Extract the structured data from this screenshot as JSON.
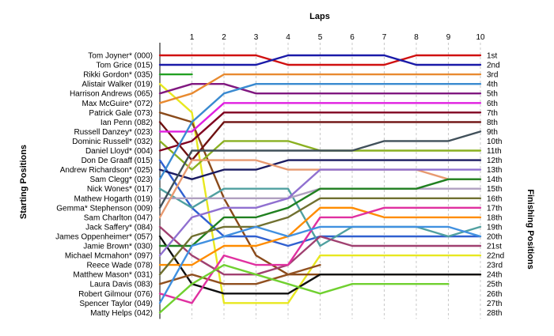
{
  "chart_data": {
    "type": "line",
    "title": "Laps",
    "ylabel_left": "Starting Positions",
    "ylabel_right": "Finishing Positions",
    "x": [
      1,
      2,
      3,
      4,
      5,
      6,
      7,
      8,
      9,
      10
    ],
    "x_ticks": [
      "1",
      "2",
      "3",
      "4",
      "5",
      "6",
      "7",
      "8",
      "9",
      "10"
    ],
    "positions": 28,
    "grid": "vertical dashed at each lap",
    "legend": "none",
    "finish_labels": [
      "1st",
      "2nd",
      "3rd",
      "4th",
      "5th",
      "6th",
      "7th",
      "8th",
      "9th",
      "10th",
      "11th",
      "12th",
      "13th",
      "14th",
      "15th",
      "16th",
      "17th",
      "18th",
      "19th",
      "20th",
      "21st",
      "22nd",
      "23rd",
      "24th",
      "25th",
      "26th",
      "27th",
      "28th"
    ],
    "series": [
      {
        "name": "Tom Joyner* (000)",
        "color": "#d01010",
        "start": 1,
        "laps": [
          1,
          1,
          1,
          2,
          2,
          2,
          2,
          1,
          1,
          1
        ]
      },
      {
        "name": "Tom Grice (015)",
        "color": "#1a1aa8",
        "start": 2,
        "laps": [
          2,
          2,
          2,
          1,
          1,
          1,
          1,
          2,
          2,
          2
        ]
      },
      {
        "name": "Rikki Gordon* (035)",
        "color": "#22a022",
        "start": 3,
        "laps": [
          3
        ]
      },
      {
        "name": "Alistair Walker (019)",
        "color": "#e8e820",
        "start": 4,
        "laps": [
          7,
          27,
          27,
          27,
          22,
          22,
          22,
          22,
          22,
          22
        ]
      },
      {
        "name": "Harrison Andrews (065)",
        "color": "#801880",
        "start": 5,
        "laps": [
          4,
          4,
          5,
          5,
          5,
          5,
          5,
          5,
          5,
          5
        ]
      },
      {
        "name": "Max McGuire* (072)",
        "color": "#e88a30",
        "start": 6,
        "laps": [
          5,
          3,
          3,
          3,
          3,
          3,
          3,
          3,
          3,
          3
        ]
      },
      {
        "name": "Patrick Gale (073)",
        "color": "#8a4a1a",
        "start": 7,
        "laps": [
          8,
          16,
          22,
          24,
          24,
          24,
          24,
          24,
          24,
          24
        ]
      },
      {
        "name": "Ian Penn (082)",
        "color": "#6e1010",
        "start": 8,
        "laps": [
          12,
          8,
          8,
          8,
          8,
          8,
          8,
          8,
          8,
          8
        ]
      },
      {
        "name": "Russell Danzey* (023)",
        "color": "#e020e0",
        "start": 9,
        "laps": [
          9,
          6,
          6,
          6,
          6,
          6,
          6,
          6,
          6,
          6
        ]
      },
      {
        "name": "Dominic Russell* (032)",
        "color": "#8ab020",
        "start": 10,
        "laps": [
          13,
          10,
          10,
          10,
          11,
          11,
          11,
          11,
          11,
          11
        ]
      },
      {
        "name": "Daniel Lloyd* (004)",
        "color": "#800020",
        "start": 11,
        "laps": [
          10,
          7,
          7,
          7,
          7,
          7,
          7,
          7,
          7,
          7
        ]
      },
      {
        "name": "Don De Graaff (015)",
        "color": "#3060d0",
        "start": 12,
        "laps": [
          17,
          20,
          20,
          21,
          20,
          20,
          20,
          20,
          20,
          20
        ]
      },
      {
        "name": "Andrew Richardson* (025)",
        "color": "#1a1a60",
        "start": 13,
        "laps": [
          14,
          13,
          13,
          12,
          12,
          12,
          12,
          12,
          12,
          12
        ]
      },
      {
        "name": "Sam Clegg* (023)",
        "color": "#3a8ad0",
        "start": 14,
        "laps": [
          8,
          5,
          4,
          4,
          4,
          4,
          4,
          4,
          4,
          4
        ]
      },
      {
        "name": "Nick Wones* (017)",
        "color": "#50a0a0",
        "start": 15,
        "laps": [
          17,
          15,
          15,
          15,
          21,
          19,
          19,
          19,
          20,
          19
        ]
      },
      {
        "name": "Mathew Hogarth (019)",
        "color": "#b0a0c0",
        "start": 16,
        "laps": [
          16,
          16,
          16,
          16,
          15,
          15,
          15,
          15,
          15,
          15
        ]
      },
      {
        "name": "Gemma* Stephenson (009)",
        "color": "#40505a",
        "start": 17,
        "laps": [
          11,
          11,
          11,
          11,
          11,
          11,
          10,
          10,
          10,
          9
        ]
      },
      {
        "name": "Sam Charlton (047)",
        "color": "#e89a70",
        "start": 18,
        "laps": [
          12,
          12,
          12,
          13,
          13,
          13,
          13,
          13,
          14,
          14
        ]
      },
      {
        "name": "Jack Saffery* (084)",
        "color": "#a04070",
        "start": 19,
        "laps": [
          22,
          24,
          24,
          23,
          20,
          21,
          21,
          21,
          21,
          21
        ]
      },
      {
        "name": "James Oppenheimer* (057)",
        "color": "#101010",
        "start": 20,
        "laps": [
          25,
          26,
          26,
          26,
          24,
          24,
          24,
          24,
          24,
          24
        ]
      },
      {
        "name": "Jamie Brown* (030)",
        "color": "#208020",
        "start": 21,
        "laps": [
          21,
          18,
          18,
          17,
          15,
          15,
          15,
          15,
          14,
          14
        ]
      },
      {
        "name": "Michael Mcmahon* (097)",
        "color": "#9070d0",
        "start": 22,
        "laps": [
          18,
          17,
          17,
          16,
          13,
          13,
          13,
          13,
          13,
          13
        ]
      },
      {
        "name": "Reece Wade (078)",
        "color": "#ff8c00",
        "start": 23,
        "laps": [
          23,
          21,
          21,
          20,
          17,
          17,
          18,
          18,
          18,
          18
        ]
      },
      {
        "name": "Matthew Mason* (031)",
        "color": "#707030",
        "start": 24,
        "laps": [
          20,
          19,
          19,
          18,
          16,
          16,
          16,
          16,
          16,
          16
        ]
      },
      {
        "name": "Laura Davis (083)",
        "color": "#905020",
        "start": 25,
        "laps": [
          24,
          25,
          25,
          24,
          23
        ]
      },
      {
        "name": "Robert Gilmour (076)",
        "color": "#e030a0",
        "start": 26,
        "laps": [
          27,
          22,
          23,
          23,
          18,
          18,
          17,
          17,
          17,
          17
        ]
      },
      {
        "name": "Spencer Taylor (049)",
        "color": "#4090e0",
        "start": 27,
        "laps": [
          21,
          20,
          19,
          20,
          19,
          19,
          19,
          19,
          19,
          20
        ]
      },
      {
        "name": "Matty Helps (042)",
        "color": "#70d030",
        "start": 28,
        "laps": [
          25,
          23,
          24,
          25,
          26,
          25,
          25,
          25,
          25
        ]
      }
    ]
  }
}
